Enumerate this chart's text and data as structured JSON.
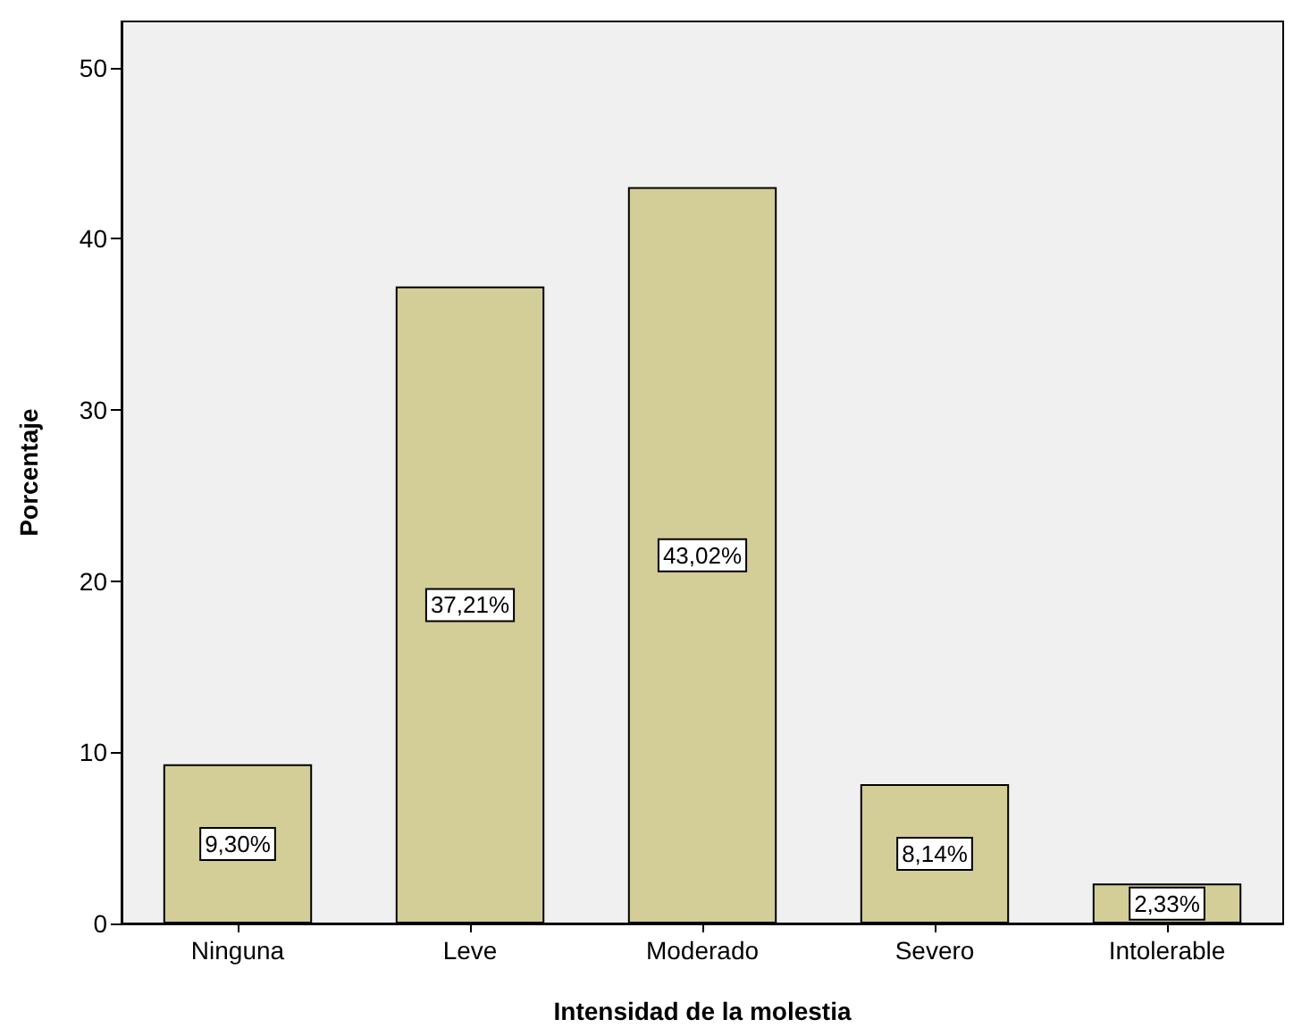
{
  "chart_data": {
    "type": "bar",
    "xlabel": "Intensidad de la molestia",
    "ylabel": "Porcentaje",
    "categories": [
      "Ninguna",
      "Leve",
      "Moderado",
      "Severo",
      "Intolerable"
    ],
    "values": [
      9.3,
      37.21,
      43.02,
      8.14,
      2.33
    ],
    "value_labels": [
      "9,30%",
      "37,21%",
      "43,02%",
      "8,14%",
      "2,33%"
    ],
    "color": "#d3ce97",
    "ylim": [
      0,
      52.7
    ],
    "yticks": [
      0,
      10,
      20,
      30,
      40,
      50
    ]
  }
}
